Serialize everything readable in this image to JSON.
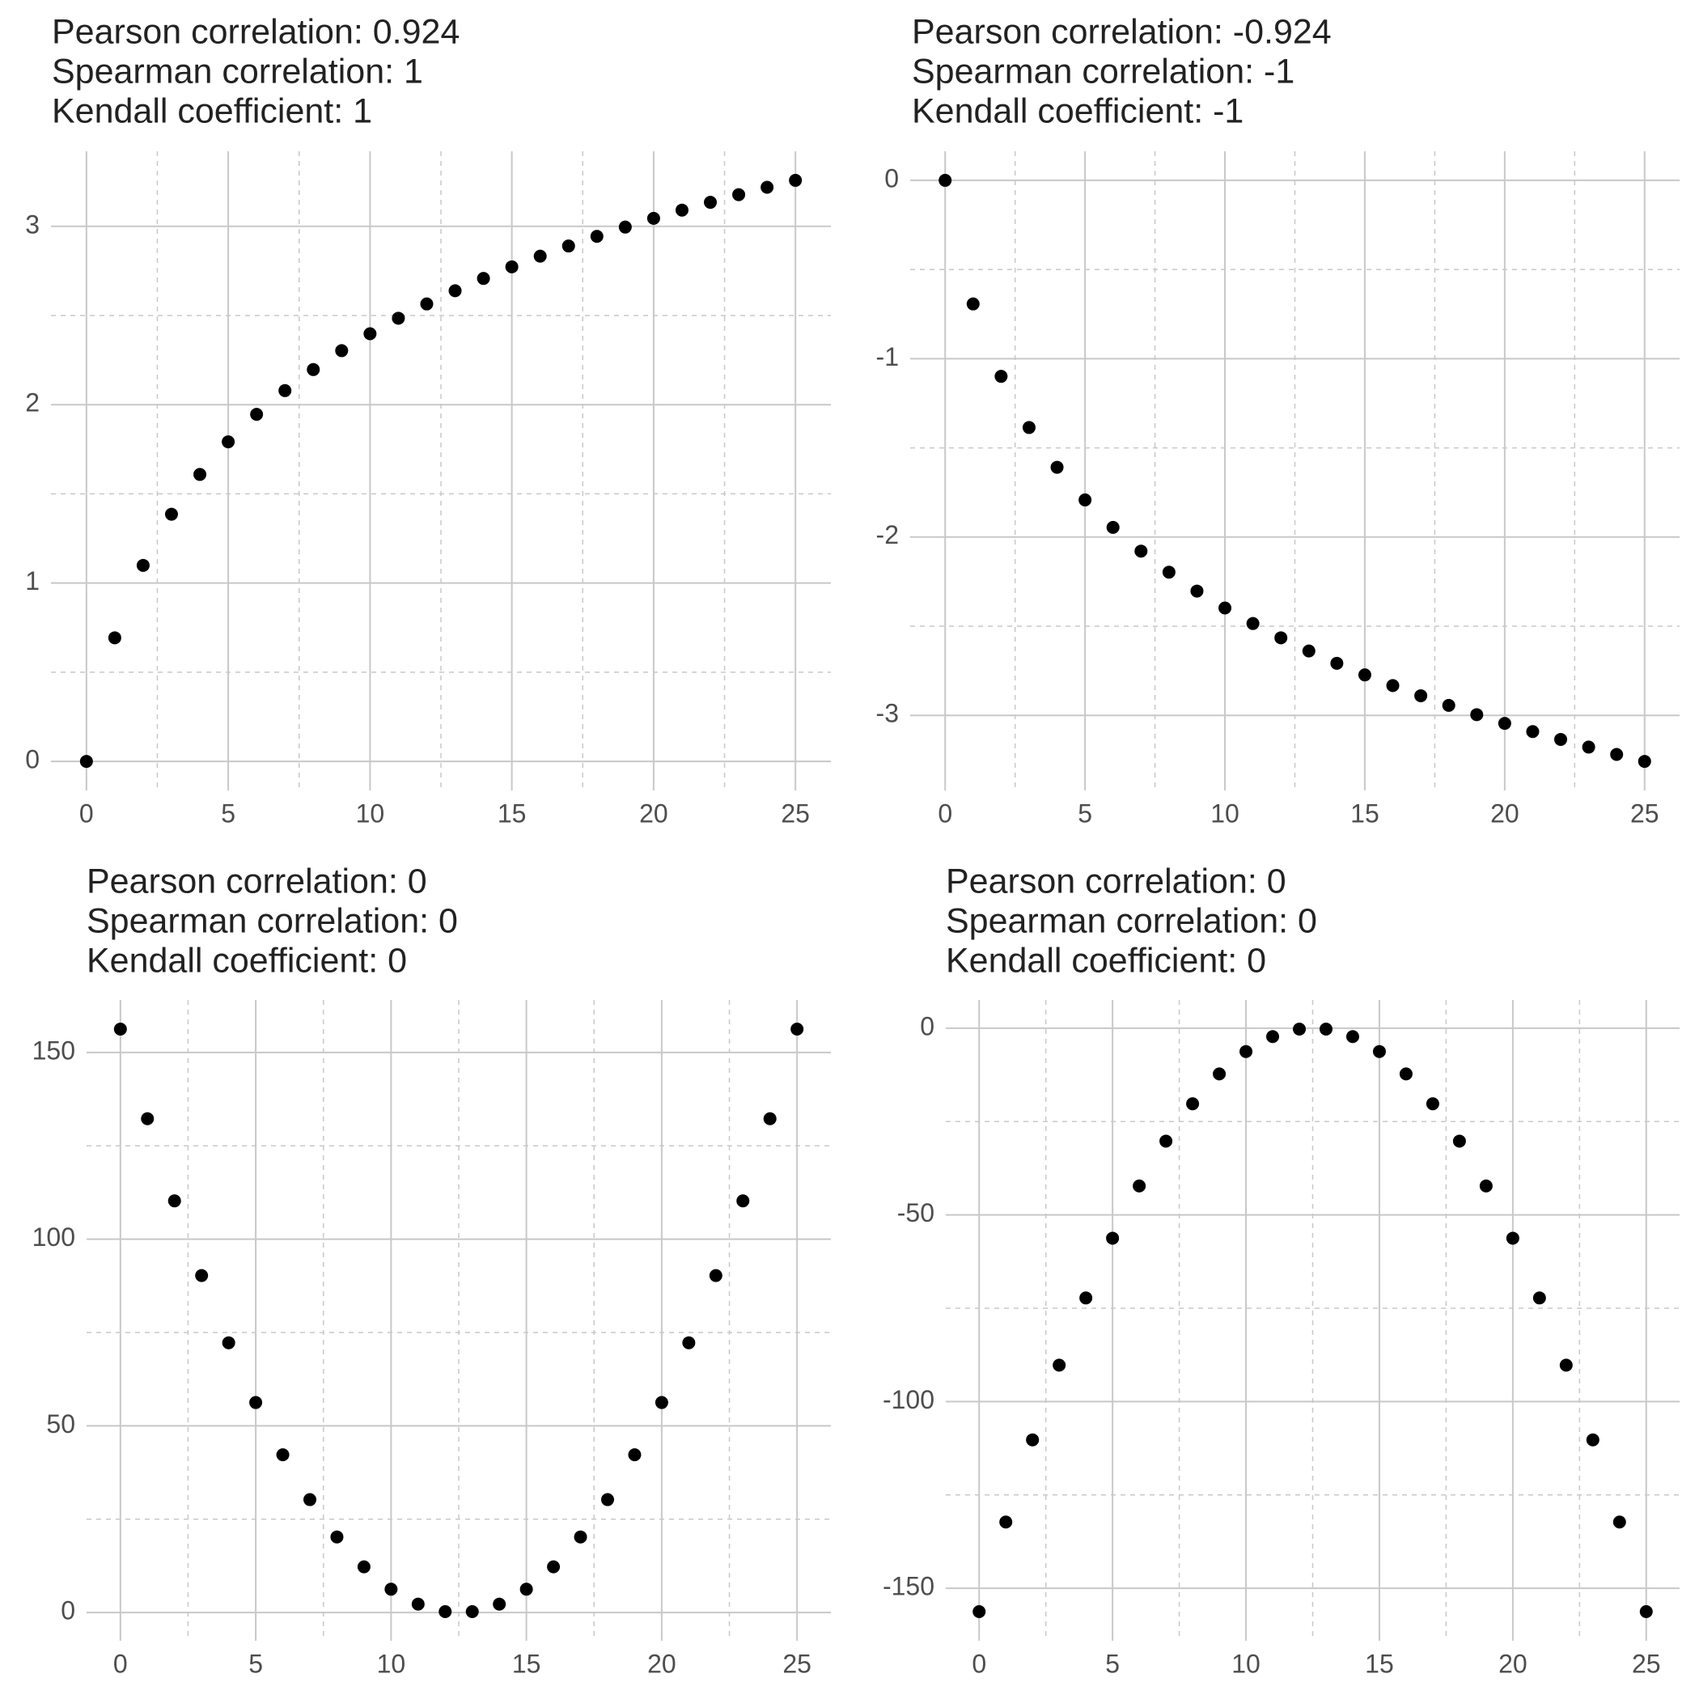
{
  "chart_data": [
    {
      "type": "scatter",
      "title_lines": [
        "Pearson correlation: 0.924",
        "Spearman correlation: 1",
        "Kendall coefficient: 1"
      ],
      "x": [
        0,
        1,
        2,
        3,
        4,
        5,
        6,
        7,
        8,
        9,
        10,
        11,
        12,
        13,
        14,
        15,
        16,
        17,
        18,
        19,
        20,
        21,
        22,
        23,
        24,
        25
      ],
      "values": [
        0,
        0.693,
        1.099,
        1.386,
        1.609,
        1.792,
        1.946,
        2.079,
        2.197,
        2.303,
        2.398,
        2.485,
        2.565,
        2.639,
        2.708,
        2.773,
        2.833,
        2.89,
        2.944,
        2.996,
        3.045,
        3.091,
        3.135,
        3.178,
        3.219,
        3.258
      ],
      "color": "#000000",
      "xlim": [
        -1.25,
        26.25
      ],
      "ylim": [
        -0.163,
        3.421
      ],
      "xticks": [
        0,
        5,
        10,
        15,
        20,
        25
      ],
      "yticks": [
        0,
        1,
        2,
        3
      ],
      "grid": true
    },
    {
      "type": "scatter",
      "title_lines": [
        "Pearson correlation: -0.924",
        "Spearman correlation: -1",
        "Kendall coefficient: -1"
      ],
      "x": [
        0,
        1,
        2,
        3,
        4,
        5,
        6,
        7,
        8,
        9,
        10,
        11,
        12,
        13,
        14,
        15,
        16,
        17,
        18,
        19,
        20,
        21,
        22,
        23,
        24,
        25
      ],
      "values": [
        0,
        -0.693,
        -1.099,
        -1.386,
        -1.609,
        -1.792,
        -1.946,
        -2.079,
        -2.197,
        -2.303,
        -2.398,
        -2.485,
        -2.565,
        -2.639,
        -2.708,
        -2.773,
        -2.833,
        -2.89,
        -2.944,
        -2.996,
        -3.045,
        -3.091,
        -3.135,
        -3.178,
        -3.219,
        -3.258
      ],
      "color": "#000000",
      "xlim": [
        -1.25,
        26.25
      ],
      "ylim": [
        -3.421,
        0.163
      ],
      "xticks": [
        0,
        5,
        10,
        15,
        20,
        25
      ],
      "yticks": [
        -3,
        -2,
        -1,
        0
      ],
      "grid": true
    },
    {
      "type": "scatter",
      "title_lines": [
        "Pearson correlation: 0",
        "Spearman correlation: 0",
        "Kendall coefficient: 0"
      ],
      "x": [
        0,
        1,
        2,
        3,
        4,
        5,
        6,
        7,
        8,
        9,
        10,
        11,
        12,
        13,
        14,
        15,
        16,
        17,
        18,
        19,
        20,
        21,
        22,
        23,
        24,
        25
      ],
      "values": [
        156.25,
        132.25,
        110.25,
        90.25,
        72.25,
        56.25,
        42.25,
        30.25,
        20.25,
        12.25,
        6.25,
        2.25,
        0.25,
        0.25,
        2.25,
        6.25,
        12.25,
        20.25,
        30.25,
        42.25,
        56.25,
        72.25,
        90.25,
        110.25,
        132.25,
        156.25
      ],
      "color": "#000000",
      "xlim": [
        -1.25,
        26.25
      ],
      "ylim": [
        -7.55,
        164.05
      ],
      "xticks": [
        0,
        5,
        10,
        15,
        20,
        25
      ],
      "yticks": [
        0,
        50,
        100,
        150
      ],
      "grid": true
    },
    {
      "type": "scatter",
      "title_lines": [
        "Pearson correlation: 0",
        "Spearman correlation: 0",
        "Kendall coefficient: 0"
      ],
      "x": [
        0,
        1,
        2,
        3,
        4,
        5,
        6,
        7,
        8,
        9,
        10,
        11,
        12,
        13,
        14,
        15,
        16,
        17,
        18,
        19,
        20,
        21,
        22,
        23,
        24,
        25
      ],
      "values": [
        -156.25,
        -132.25,
        -110.25,
        -90.25,
        -72.25,
        -56.25,
        -42.25,
        -30.25,
        -20.25,
        -12.25,
        -6.25,
        -2.25,
        -0.25,
        -0.25,
        -2.25,
        -6.25,
        -12.25,
        -20.25,
        -30.25,
        -42.25,
        -56.25,
        -72.25,
        -90.25,
        -110.25,
        -132.25,
        -156.25
      ],
      "color": "#000000",
      "xlim": [
        -1.25,
        26.25
      ],
      "ylim": [
        -164.05,
        7.55
      ],
      "xticks": [
        0,
        5,
        10,
        15,
        20,
        25
      ],
      "yticks": [
        -150,
        -100,
        -50,
        0
      ],
      "grid": true
    }
  ]
}
